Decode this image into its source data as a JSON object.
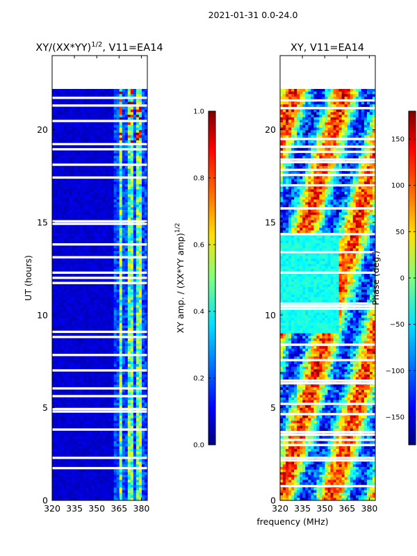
{
  "figure": {
    "suptitle": "2021-01-31 0.0-24.0",
    "xlabel": "frequency (MHz)"
  },
  "chart_data": [
    {
      "type": "heatmap",
      "title_main": "XY/(XX*YY)",
      "title_exp": "1/2",
      "title_tail": ", V11=EA14",
      "ylabel": "UT (hours)",
      "xticks": [
        320,
        335,
        350,
        365,
        380
      ],
      "yticks": [
        0,
        5,
        10,
        15,
        20
      ],
      "xlim": [
        320,
        384
      ],
      "ylim": [
        0,
        24
      ],
      "data_ylim": [
        0,
        22.2
      ],
      "colorbar": {
        "label_main": "XY amp. / (XX*YY amp)",
        "label_exp": "1/2",
        "ticks": [
          "0.0",
          "0.2",
          "0.4",
          "0.6",
          "0.8",
          "1.0"
        ],
        "range": [
          0,
          1
        ],
        "colormap": [
          "#00007f",
          "#0000ff",
          "#0080ff",
          "#00e0ff",
          "#7fff7f",
          "#ffe000",
          "#ff7000",
          "#ff0000",
          "#7f0000"
        ]
      }
    },
    {
      "type": "heatmap",
      "title_main": "XY, V11=EA14",
      "ylabel": "",
      "xticks": [
        320,
        335,
        350,
        365,
        380
      ],
      "yticks": [
        0,
        5,
        10,
        15,
        20
      ],
      "xlim": [
        320,
        384
      ],
      "ylim": [
        0,
        24
      ],
      "data_ylim": [
        0,
        22.2
      ],
      "colorbar": {
        "label_main": "Phase (deg.)",
        "ticks": [
          "150",
          "100",
          "50",
          "0",
          "−50",
          "−100",
          "−150"
        ],
        "range": [
          -180,
          180
        ],
        "colormap": [
          "#00007f",
          "#0000ff",
          "#0080ff",
          "#00e0ff",
          "#7fff7f",
          "#ffe000",
          "#ff7000",
          "#ff0000",
          "#7f0000"
        ]
      }
    }
  ]
}
